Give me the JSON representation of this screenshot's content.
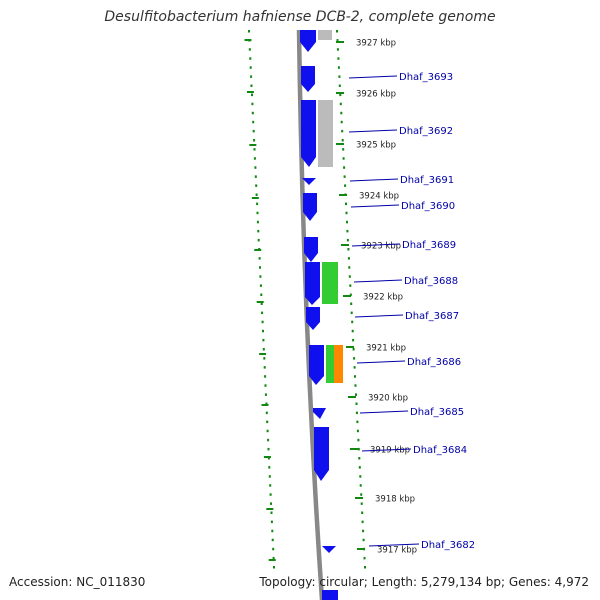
{
  "title": "Desulfitobacterium hafniense DCB-2, complete genome",
  "accession": "Accession: NC_011830",
  "summary": "Topology: circular; Length: 5,279,134 bp; Genes: 4,972",
  "colors": {
    "gene": "#1010ee",
    "label": "#0000aa",
    "green_feature": "#33cc33",
    "orange_feature": "#ff8800",
    "gray_feature": "#bbbbbb",
    "backbone": "#888888",
    "ticks": "#118811"
  },
  "ticks": [
    {
      "label": "3927 kbp"
    },
    {
      "label": "3926 kbp"
    },
    {
      "label": "3925 kbp"
    },
    {
      "label": "3924 kbp"
    },
    {
      "label": "3923 kbp"
    },
    {
      "label": "3922 kbp"
    },
    {
      "label": "3921 kbp"
    },
    {
      "label": "3920 kbp"
    },
    {
      "label": "3919 kbp"
    },
    {
      "label": "3918 kbp"
    },
    {
      "label": "3917 kbp"
    }
  ],
  "genes": [
    {
      "label": "Dhaf_3693"
    },
    {
      "label": "Dhaf_3692"
    },
    {
      "label": "Dhaf_3691"
    },
    {
      "label": "Dhaf_3690"
    },
    {
      "label": "Dhaf_3689"
    },
    {
      "label": "Dhaf_3688"
    },
    {
      "label": "Dhaf_3687"
    },
    {
      "label": "Dhaf_3686"
    },
    {
      "label": "Dhaf_3685"
    },
    {
      "label": "Dhaf_3684"
    },
    {
      "label": "Dhaf_3682"
    }
  ]
}
